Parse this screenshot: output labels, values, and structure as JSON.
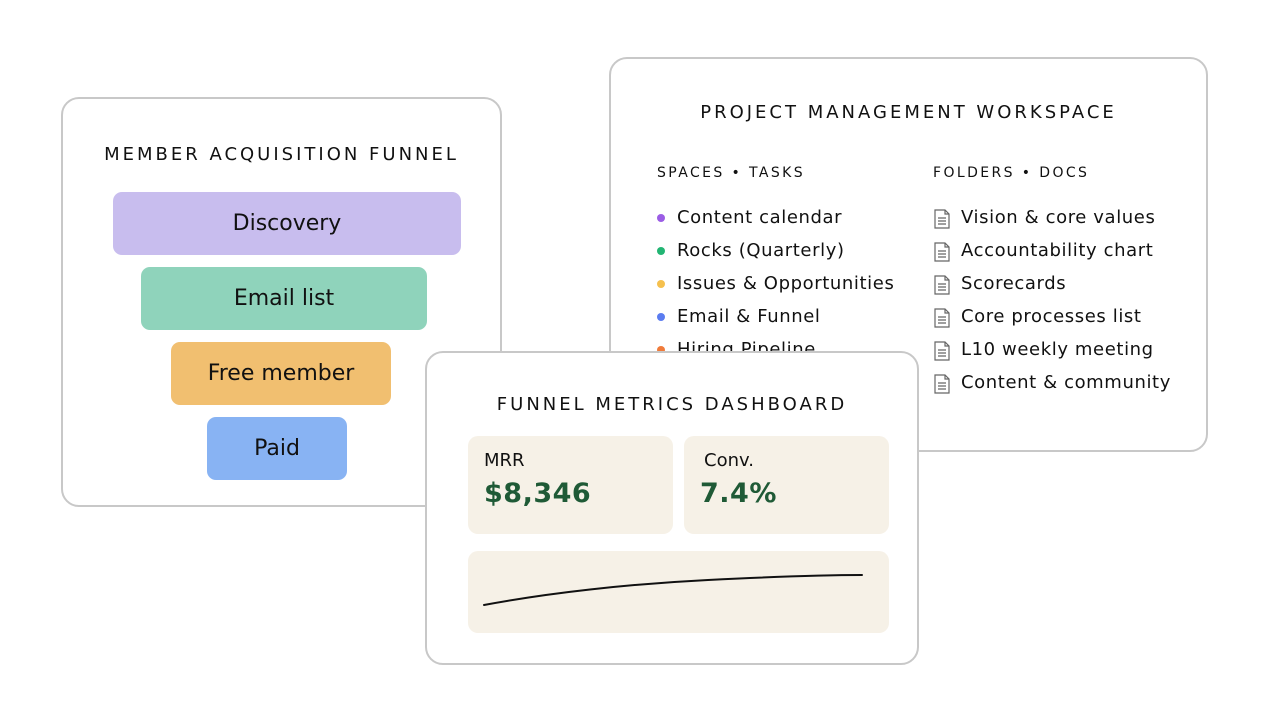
{
  "funnel": {
    "title": "MEMBER ACQUISITION FUNNEL",
    "stages": [
      {
        "label": "Discovery",
        "color": "#c8bdee"
      },
      {
        "label": "Email list",
        "color": "#8fd3bb"
      },
      {
        "label": "Free member",
        "color": "#f1bf70"
      },
      {
        "label": "Paid",
        "color": "#88b3f3"
      }
    ]
  },
  "workspace": {
    "title": "PROJECT MANAGEMENT WORKSPACE",
    "spaces_heading": "SPACES • TASKS",
    "folders_heading": "FOLDERS • DOCS",
    "spaces": [
      {
        "label": "Content calendar",
        "color": "#9b5de5"
      },
      {
        "label": "Rocks (Quarterly)",
        "color": "#22b573"
      },
      {
        "label": "Issues & Opportunities",
        "color": "#f5c04e"
      },
      {
        "label": "Email & Funnel",
        "color": "#5b7cf0"
      },
      {
        "label": "Hiring Pipeline",
        "color": "#f07b3a"
      }
    ],
    "docs": [
      {
        "label": "Vision & core values",
        "icon": "document-icon"
      },
      {
        "label": "Accountability chart",
        "icon": "document-icon"
      },
      {
        "label": "Scorecards",
        "icon": "document-icon"
      },
      {
        "label": "Core processes list",
        "icon": "document-icon"
      },
      {
        "label": "L10 weekly meeting",
        "icon": "document-icon"
      },
      {
        "label": "Content & community",
        "icon": "document-icon"
      }
    ]
  },
  "dashboard": {
    "title": "FUNNEL METRICS DASHBOARD",
    "metrics": [
      {
        "label": "MRR",
        "value": "$8,346"
      },
      {
        "label": "Conv.",
        "value": "7.4%"
      }
    ],
    "value_color": "#1f5a36"
  }
}
